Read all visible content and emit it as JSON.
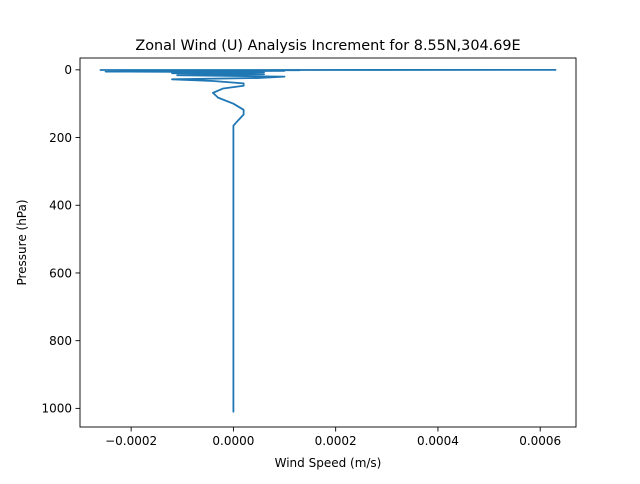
{
  "chart_data": {
    "type": "line",
    "title": "Zonal Wind (U) Analysis Increment for 8.55N,304.69E",
    "xlabel": "Wind Speed (m/s)",
    "ylabel": "Pressure (hPa)",
    "xlim": [
      -0.0003,
      0.00067
    ],
    "ylim": [
      1055,
      -35
    ],
    "y_inverted": true,
    "grid": false,
    "legend": "none",
    "x_ticks": [
      {
        "value": -0.0002,
        "label": "−0.0002"
      },
      {
        "value": 0.0,
        "label": "0.0000"
      },
      {
        "value": 0.0002,
        "label": "0.0002"
      },
      {
        "value": 0.0004,
        "label": "0.0004"
      },
      {
        "value": 0.0006,
        "label": "0.0006"
      }
    ],
    "y_ticks": [
      {
        "value": 0,
        "label": "0"
      },
      {
        "value": 200,
        "label": "200"
      },
      {
        "value": 400,
        "label": "400"
      },
      {
        "value": 600,
        "label": "600"
      },
      {
        "value": 800,
        "label": "800"
      },
      {
        "value": 1000,
        "label": "1000"
      }
    ],
    "series": [
      {
        "color": "#1f77b4",
        "points": [
          {
            "x": 0.00063,
            "y": 0.1
          },
          {
            "x": -0.00026,
            "y": 0.5
          },
          {
            "x": 0.00013,
            "y": 1
          },
          {
            "x": -0.00025,
            "y": 2
          },
          {
            "x": 0.0001,
            "y": 3
          },
          {
            "x": -0.00025,
            "y": 5
          },
          {
            "x": 6e-05,
            "y": 7
          },
          {
            "x": -0.00012,
            "y": 10
          },
          {
            "x": 6e-05,
            "y": 13
          },
          {
            "x": -0.00011,
            "y": 16
          },
          {
            "x": 0.0001,
            "y": 20
          },
          {
            "x": 5e-05,
            "y": 24
          },
          {
            "x": -0.00012,
            "y": 28
          },
          {
            "x": -4e-05,
            "y": 33
          },
          {
            "x": 2e-05,
            "y": 40
          },
          {
            "x": 2e-05,
            "y": 47
          },
          {
            "x": -2e-05,
            "y": 55
          },
          {
            "x": -4e-05,
            "y": 68
          },
          {
            "x": -3e-05,
            "y": 82
          },
          {
            "x": 0.0,
            "y": 100
          },
          {
            "x": 2e-05,
            "y": 118
          },
          {
            "x": 2e-05,
            "y": 132
          },
          {
            "x": 1e-05,
            "y": 148
          },
          {
            "x": 0.0,
            "y": 165
          },
          {
            "x": 0.0,
            "y": 200
          },
          {
            "x": 0.0,
            "y": 260
          },
          {
            "x": 0.0,
            "y": 400
          },
          {
            "x": 0.0,
            "y": 600
          },
          {
            "x": 0.0,
            "y": 800
          },
          {
            "x": 0.0,
            "y": 1010
          }
        ]
      }
    ]
  }
}
